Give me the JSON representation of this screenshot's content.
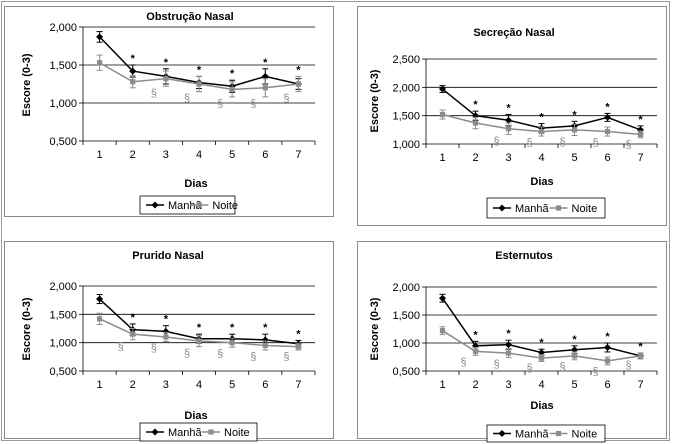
{
  "colors": {
    "manha": "#000000",
    "noite": "#8c8c8c",
    "grid": "#000000"
  },
  "legend": {
    "manha": "Manhã",
    "noite": "Noite"
  },
  "chart_data": [
    {
      "type": "line",
      "title": "Obstrução Nasal",
      "xlabel": "Dias",
      "ylabel": "Escore (0-3)",
      "categories": [
        "1",
        "2",
        "3",
        "4",
        "5",
        "6",
        "7"
      ],
      "y_ticks": [
        "0,500",
        "1,000",
        "1,500",
        "2,000"
      ],
      "ylim": [
        0.5,
        2.0
      ],
      "grid": true,
      "legend_position": "bottom",
      "series": [
        {
          "name": "Manhã",
          "values": [
            1.87,
            1.42,
            1.35,
            1.27,
            1.22,
            1.35,
            1.25
          ],
          "error": [
            0.07,
            0.08,
            0.1,
            0.08,
            0.08,
            0.1,
            0.07
          ]
        },
        {
          "name": "Noite",
          "values": [
            1.53,
            1.28,
            1.32,
            1.25,
            1.18,
            1.2,
            1.25
          ],
          "error": [
            0.1,
            0.08,
            0.1,
            0.1,
            0.1,
            0.12,
            0.1
          ]
        }
      ],
      "asterisks": [
        "",
        "*",
        "*",
        "*",
        "*",
        "*",
        "*"
      ],
      "section_signs": [
        "",
        "",
        "§",
        "§",
        "§",
        "§",
        "§"
      ]
    },
    {
      "type": "line",
      "title": "Secreção Nasal",
      "xlabel": "Dias",
      "ylabel": "Escore (0-3)",
      "categories": [
        "1",
        "2",
        "3",
        "4",
        "5",
        "6",
        "7"
      ],
      "y_ticks": [
        "1,000",
        "1,500",
        "2,000",
        "2,500"
      ],
      "ylim": [
        1.0,
        2.5
      ],
      "grid": true,
      "legend_position": "bottom",
      "series": [
        {
          "name": "Manhã",
          "values": [
            1.97,
            1.5,
            1.42,
            1.28,
            1.32,
            1.47,
            1.25
          ],
          "error": [
            0.06,
            0.08,
            0.1,
            0.08,
            0.08,
            0.07,
            0.07
          ]
        },
        {
          "name": "Noite",
          "values": [
            1.52,
            1.37,
            1.27,
            1.22,
            1.25,
            1.22,
            1.17
          ],
          "error": [
            0.08,
            0.1,
            0.1,
            0.08,
            0.1,
            0.08,
            0.06
          ]
        }
      ],
      "asterisks": [
        "",
        "*",
        "*",
        "*",
        "*",
        "*",
        "*"
      ],
      "section_signs": [
        "",
        "",
        "§",
        "§",
        "§",
        "§",
        "§"
      ]
    },
    {
      "type": "line",
      "title": "Prurido Nasal",
      "xlabel": "Dias",
      "ylabel": "Escore (0-3)",
      "categories": [
        "1",
        "2",
        "3",
        "4",
        "5",
        "6",
        "7"
      ],
      "y_ticks": [
        "0,500",
        "1,000",
        "1,500",
        "2,000"
      ],
      "ylim": [
        0.5,
        2.0
      ],
      "grid": true,
      "legend_position": "bottom",
      "series": [
        {
          "name": "Manhã",
          "values": [
            1.77,
            1.23,
            1.2,
            1.07,
            1.07,
            1.05,
            0.98
          ],
          "error": [
            0.08,
            0.1,
            0.1,
            0.08,
            0.08,
            0.1,
            0.06
          ]
        },
        {
          "name": "Noite",
          "values": [
            1.42,
            1.15,
            1.1,
            1.03,
            1.0,
            0.95,
            0.93
          ],
          "error": [
            0.1,
            0.1,
            0.08,
            0.1,
            0.08,
            0.08,
            0.06
          ]
        }
      ],
      "asterisks": [
        "",
        "*",
        "*",
        "*",
        "*",
        "*",
        "*"
      ],
      "section_signs": [
        "",
        "§",
        "§",
        "§",
        "§",
        "§",
        "§"
      ]
    },
    {
      "type": "line",
      "title": "Esternutos",
      "xlabel": "Dias",
      "ylabel": "Escore (0-3)",
      "categories": [
        "1",
        "2",
        "3",
        "4",
        "5",
        "6",
        "7"
      ],
      "y_ticks": [
        "0,500",
        "1,000",
        "1,500",
        "2,000"
      ],
      "ylim": [
        0.5,
        2.0
      ],
      "grid": true,
      "legend_position": "bottom",
      "series": [
        {
          "name": "Manhã",
          "values": [
            1.8,
            0.95,
            0.97,
            0.83,
            0.88,
            0.92,
            0.77
          ],
          "error": [
            0.07,
            0.08,
            0.08,
            0.06,
            0.07,
            0.08,
            0.05
          ]
        },
        {
          "name": "Noite",
          "values": [
            1.22,
            0.85,
            0.82,
            0.73,
            0.77,
            0.68,
            0.77
          ],
          "error": [
            0.07,
            0.07,
            0.08,
            0.06,
            0.07,
            0.07,
            0.05
          ]
        }
      ],
      "asterisks": [
        "",
        "*",
        "*",
        "*",
        "*",
        "*",
        "*"
      ],
      "section_signs": [
        "",
        "§",
        "§",
        "§",
        "§",
        "§",
        "§"
      ]
    }
  ]
}
